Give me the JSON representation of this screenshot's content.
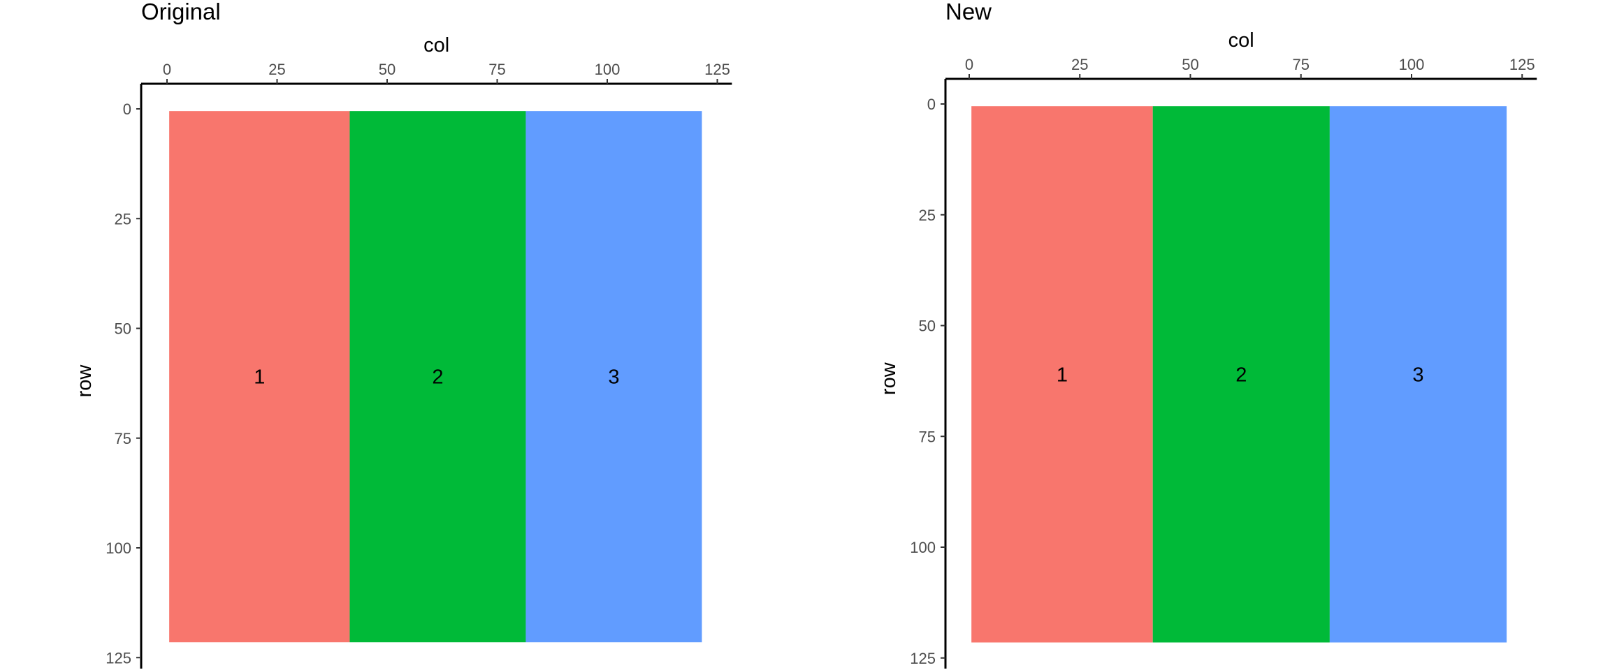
{
  "chart_data": [
    {
      "type": "heatmap",
      "title": "Original",
      "xlabel": "col",
      "ylabel": "row",
      "x_axis_position": "top",
      "y_axis_reversed": true,
      "xlim": [
        -6,
        128
      ],
      "ylim": [
        0,
        125
      ],
      "x_ticks": [
        0,
        25,
        50,
        75,
        100,
        125
      ],
      "y_ticks": [
        0,
        25,
        50,
        75,
        100,
        125
      ],
      "grid": false,
      "regions": [
        {
          "label": "1",
          "x_start": 0.5,
          "x_end": 41.5,
          "y_start": 0.5,
          "y_end": 121.5,
          "color": "#F8766D"
        },
        {
          "label": "2",
          "x_start": 41.5,
          "x_end": 81.5,
          "y_start": 0.5,
          "y_end": 121.5,
          "color": "#00BA38"
        },
        {
          "label": "3",
          "x_start": 81.5,
          "x_end": 121.5,
          "y_start": 0.5,
          "y_end": 121.5,
          "color": "#619CFF"
        }
      ]
    },
    {
      "type": "heatmap",
      "title": "New",
      "xlabel": "col",
      "ylabel": "row",
      "x_axis_position": "top",
      "y_axis_reversed": true,
      "xlim": [
        -6,
        128
      ],
      "ylim": [
        0,
        125
      ],
      "x_ticks": [
        0,
        25,
        50,
        75,
        100,
        125
      ],
      "y_ticks": [
        0,
        25,
        50,
        75,
        100,
        125
      ],
      "grid": false,
      "regions": [
        {
          "label": "1",
          "x_start": 0.5,
          "x_end": 41.5,
          "y_start": 0.5,
          "y_end": 121.5,
          "color": "#F8766D"
        },
        {
          "label": "2",
          "x_start": 41.5,
          "x_end": 81.5,
          "y_start": 0.5,
          "y_end": 121.5,
          "color": "#00BA38"
        },
        {
          "label": "3",
          "x_start": 81.5,
          "x_end": 121.5,
          "y_start": 0.5,
          "y_end": 121.5,
          "color": "#619CFF"
        }
      ]
    }
  ]
}
